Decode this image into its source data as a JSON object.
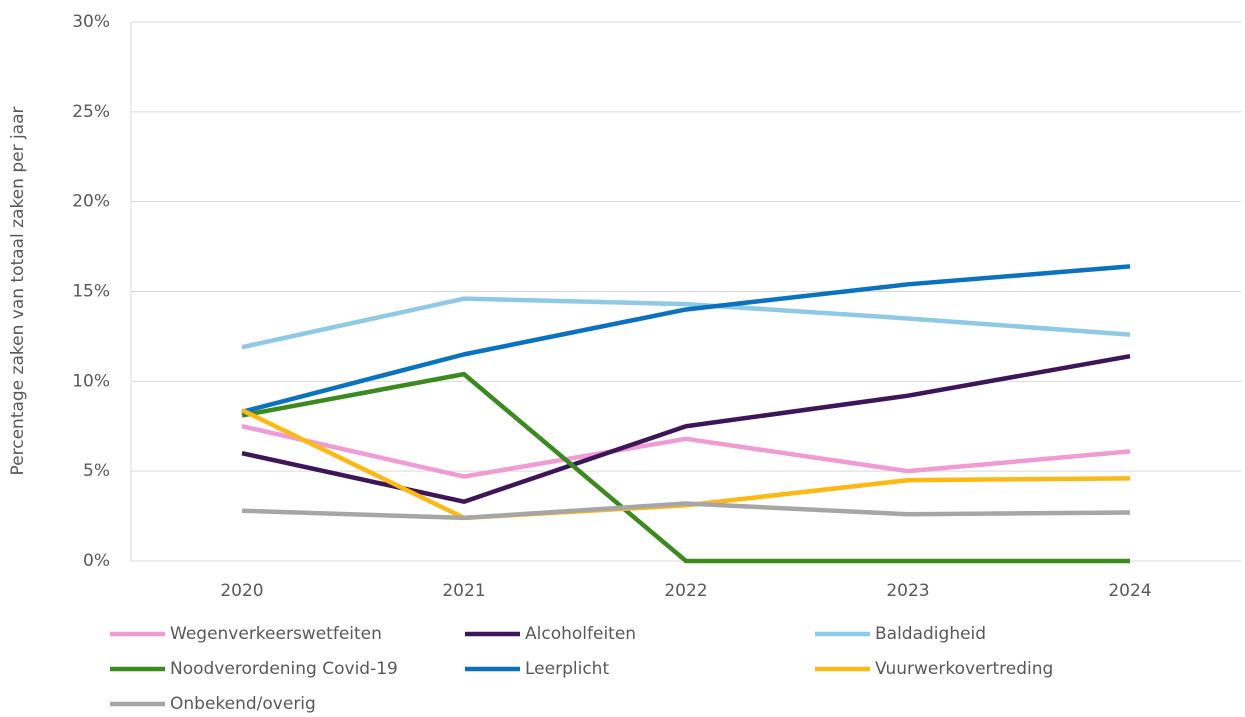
{
  "chart_data": {
    "type": "line",
    "y_label": "Percentage zaken van totaal zaken per jaar",
    "categories": [
      "2020",
      "2021",
      "2022",
      "2023",
      "2024"
    ],
    "series": [
      {
        "name": "Wegenverkeerswetfeiten",
        "color": "#f09bd3",
        "values": [
          7.5,
          4.7,
          6.8,
          5.0,
          6.1
        ]
      },
      {
        "name": "Alcoholfeiten",
        "color": "#3d1558",
        "values": [
          6.0,
          3.3,
          7.5,
          9.2,
          11.4
        ]
      },
      {
        "name": "Baldadigheid",
        "color": "#8ecae6",
        "values": [
          11.9,
          14.6,
          14.3,
          13.5,
          12.6
        ]
      },
      {
        "name": "Noodverordening Covid-19",
        "color": "#3a8a1e",
        "values": [
          8.1,
          10.4,
          0,
          0,
          0
        ]
      },
      {
        "name": "Leerplicht",
        "color": "#0a72bf",
        "values": [
          8.3,
          11.5,
          14.0,
          15.4,
          16.4
        ]
      },
      {
        "name": "Vuurwerkovertreding",
        "color": "#fdb913",
        "values": [
          8.4,
          2.4,
          3.1,
          4.5,
          4.6
        ]
      },
      {
        "name": "Onbekend/overig",
        "color": "#a6a6a6",
        "values": [
          2.8,
          2.4,
          3.2,
          2.6,
          2.7
        ]
      }
    ],
    "ylim": [
      0,
      30
    ],
    "yticks": [
      {
        "value": 0,
        "label": "0%"
      },
      {
        "value": 5,
        "label": "5%"
      },
      {
        "value": 10,
        "label": "10%"
      },
      {
        "value": 15,
        "label": "15%"
      },
      {
        "value": 20,
        "label": "20%"
      },
      {
        "value": 25,
        "label": "25%"
      },
      {
        "value": 30,
        "label": "30%"
      }
    ],
    "grid": true
  }
}
